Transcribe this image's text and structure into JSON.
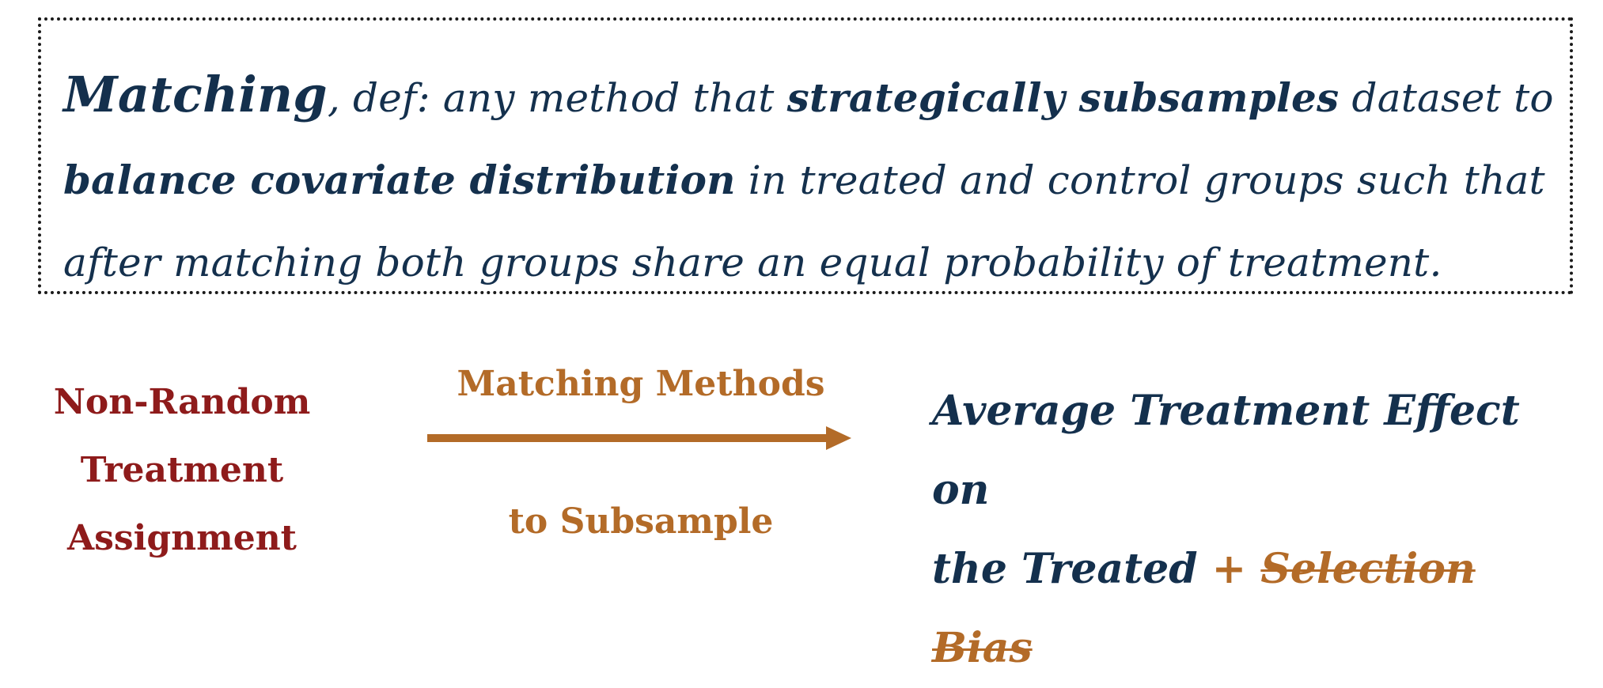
{
  "definition": {
    "term": "Matching",
    "part1": ", def: any method that ",
    "bold1": "strategically subsamples",
    "part2": " dataset to ",
    "bold2": "balance covariate distribution",
    "part3": " in treated and control groups such that after matching both groups share an equal probability of treatment."
  },
  "flow": {
    "input_lines": [
      "Non-Random",
      "Treatment",
      "Assignment"
    ],
    "method_top": "Matching Methods",
    "method_bottom": "to Subsample",
    "result_line1": "Average Treatment Effect on",
    "result_line2": "the Treated",
    "plus": " + ",
    "struck": "Selection Bias"
  },
  "colors": {
    "navy": "#14304d",
    "dark_red": "#8e1b1b",
    "orange": "#b36b28"
  }
}
